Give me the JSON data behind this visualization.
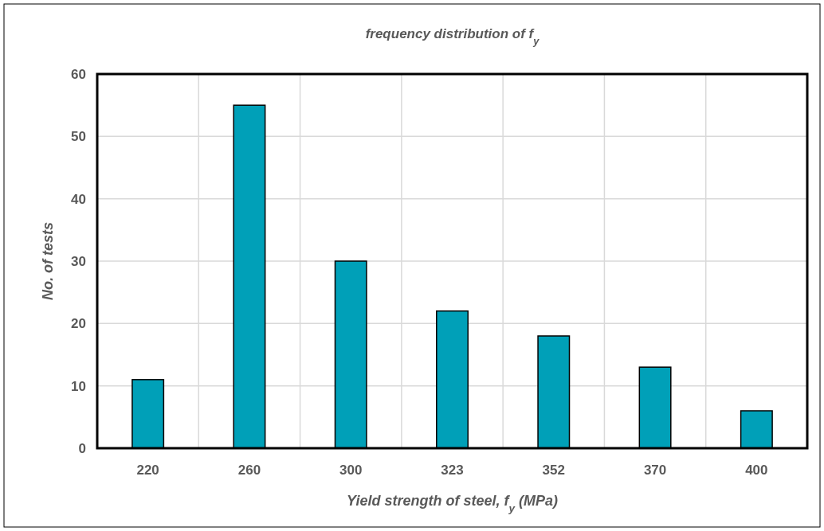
{
  "chart_data": {
    "type": "bar",
    "title": "frequency distribution of f$_{y}$",
    "xlabel": "Yield strength of steel, f$_{y}$ (MPa)",
    "ylabel": "No. of tests",
    "categories": [
      "220",
      "260",
      "300",
      "323",
      "352",
      "370",
      "400"
    ],
    "values": [
      11,
      55,
      30,
      22,
      18,
      13,
      6
    ],
    "color": "#00a0b8",
    "ylim": [
      0,
      60
    ],
    "yticks": [
      0,
      10,
      20,
      30,
      40,
      50,
      60
    ],
    "grid": true
  }
}
